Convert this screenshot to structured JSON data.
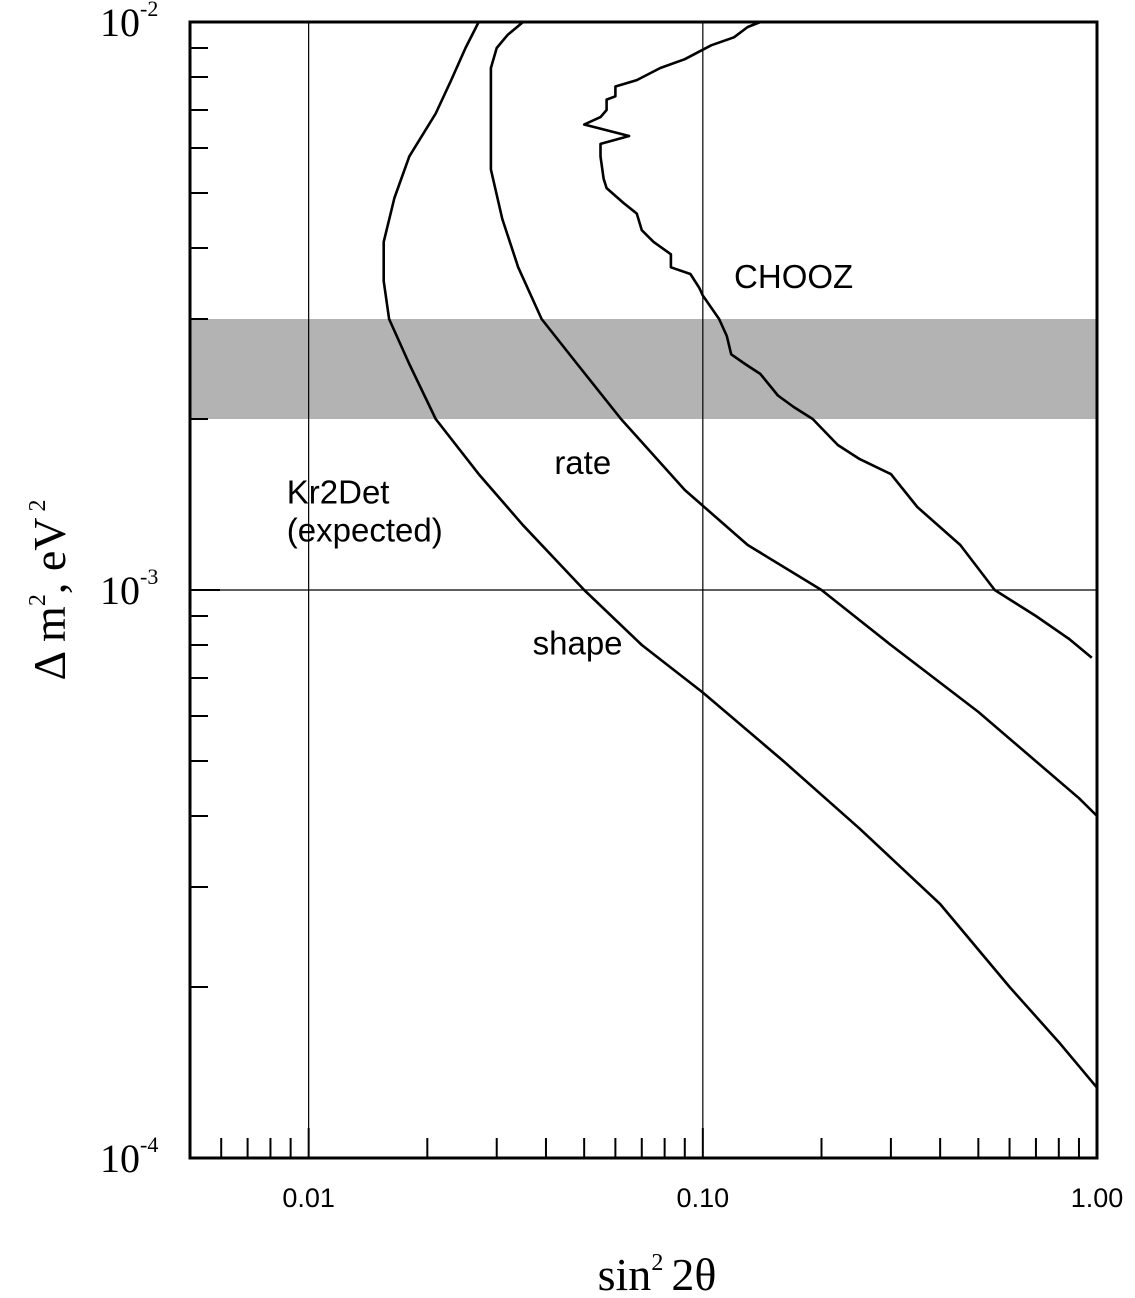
{
  "chart_data": {
    "type": "line",
    "xlabel": {
      "base": "sin",
      "sup": "2",
      "rest": "2θ"
    },
    "ylabel": {
      "delta": "Δ m",
      "sup1": "2",
      "mid": ",  eV",
      "sup2": "2"
    },
    "x_scale": "log",
    "y_scale": "log",
    "xlim": [
      0.005,
      1.0
    ],
    "ylim": [
      0.0001,
      0.01
    ],
    "x_tick_labels": [
      {
        "value": 0.01,
        "label": "0.01"
      },
      {
        "value": 0.1,
        "label": "0.10"
      },
      {
        "value": 1.0,
        "label": "1.00"
      }
    ],
    "y_tick_labels": [
      {
        "value": 0.0001,
        "base": "10",
        "exp": "-4"
      },
      {
        "value": 0.001,
        "base": "10",
        "exp": "-3"
      },
      {
        "value": 0.01,
        "base": "10",
        "exp": "-2"
      }
    ],
    "grid": {
      "x": [
        0.01,
        0.1
      ],
      "y": [
        0.001
      ]
    },
    "band": {
      "ymin": 0.002,
      "ymax": 0.003,
      "color": "#b3b3b3"
    },
    "series": [
      {
        "name": "CHOOZ",
        "points": [
          [
            0.14,
            0.01
          ],
          [
            0.13,
            0.0098
          ],
          [
            0.12,
            0.0094
          ],
          [
            0.105,
            0.0091
          ],
          [
            0.09,
            0.0086
          ],
          [
            0.078,
            0.0083
          ],
          [
            0.068,
            0.0079
          ],
          [
            0.06,
            0.0077
          ],
          [
            0.06,
            0.0074
          ],
          [
            0.057,
            0.0073
          ],
          [
            0.057,
            0.007
          ],
          [
            0.055,
            0.0068
          ],
          [
            0.05,
            0.0066
          ],
          [
            0.065,
            0.0063
          ],
          [
            0.055,
            0.0061
          ],
          [
            0.055,
            0.0058
          ],
          [
            0.056,
            0.0053
          ],
          [
            0.057,
            0.0051
          ],
          [
            0.063,
            0.0048
          ],
          [
            0.068,
            0.0046
          ],
          [
            0.07,
            0.0043
          ],
          [
            0.075,
            0.0041
          ],
          [
            0.083,
            0.0039
          ],
          [
            0.083,
            0.0037
          ],
          [
            0.093,
            0.0036
          ],
          [
            0.098,
            0.0034
          ],
          [
            0.1,
            0.0033
          ],
          [
            0.11,
            0.003
          ],
          [
            0.115,
            0.0028
          ],
          [
            0.118,
            0.0026
          ],
          [
            0.128,
            0.0025
          ],
          [
            0.14,
            0.0024
          ],
          [
            0.155,
            0.0022
          ],
          [
            0.17,
            0.0021
          ],
          [
            0.19,
            0.002
          ],
          [
            0.22,
            0.0018
          ],
          [
            0.25,
            0.0017
          ],
          [
            0.3,
            0.0016
          ],
          [
            0.35,
            0.0014
          ],
          [
            0.45,
            0.0012
          ],
          [
            0.55,
            0.001
          ],
          [
            0.7,
            0.0009
          ],
          [
            0.85,
            0.00082
          ],
          [
            0.97,
            0.00076
          ]
        ]
      },
      {
        "name": "rate",
        "points": [
          [
            0.035,
            0.01
          ],
          [
            0.032,
            0.0095
          ],
          [
            0.03,
            0.009
          ],
          [
            0.029,
            0.0083
          ],
          [
            0.029,
            0.0075
          ],
          [
            0.029,
            0.0065
          ],
          [
            0.029,
            0.0055
          ],
          [
            0.031,
            0.0045
          ],
          [
            0.034,
            0.0037
          ],
          [
            0.039,
            0.003
          ],
          [
            0.048,
            0.0025
          ],
          [
            0.062,
            0.002
          ],
          [
            0.09,
            0.0015
          ],
          [
            0.13,
            0.0012
          ],
          [
            0.2,
            0.001
          ],
          [
            0.3,
            0.0008
          ],
          [
            0.5,
            0.00061
          ],
          [
            0.9,
            0.00043
          ],
          [
            1.0,
            0.0004
          ]
        ]
      },
      {
        "name": "shape",
        "points": [
          [
            0.027,
            0.01
          ],
          [
            0.025,
            0.009
          ],
          [
            0.023,
            0.0079
          ],
          [
            0.021,
            0.0069
          ],
          [
            0.018,
            0.0058
          ],
          [
            0.0165,
            0.0049
          ],
          [
            0.0155,
            0.0041
          ],
          [
            0.0155,
            0.0035
          ],
          [
            0.016,
            0.003
          ],
          [
            0.018,
            0.0025
          ],
          [
            0.021,
            0.002
          ],
          [
            0.027,
            0.0016
          ],
          [
            0.035,
            0.0013
          ],
          [
            0.05,
            0.001
          ],
          [
            0.07,
            0.0008
          ],
          [
            0.1,
            0.00066
          ],
          [
            0.16,
            0.0005
          ],
          [
            0.25,
            0.00038
          ],
          [
            0.4,
            0.00028
          ],
          [
            0.6,
            0.0002
          ],
          [
            0.8,
            0.00016
          ],
          [
            1.0,
            0.000133
          ]
        ]
      }
    ],
    "annotations": [
      {
        "lines": [
          "CHOOZ"
        ],
        "x": 0.12,
        "y": 0.0034
      },
      {
        "lines": [
          "rate"
        ],
        "x": 0.042,
        "y": 0.0016
      },
      {
        "lines": [
          "Kr2Det",
          "(expected)"
        ],
        "x": 0.0088,
        "y": 0.00142
      },
      {
        "lines": [
          "shape"
        ],
        "x": 0.037,
        "y": 0.00077
      }
    ]
  }
}
